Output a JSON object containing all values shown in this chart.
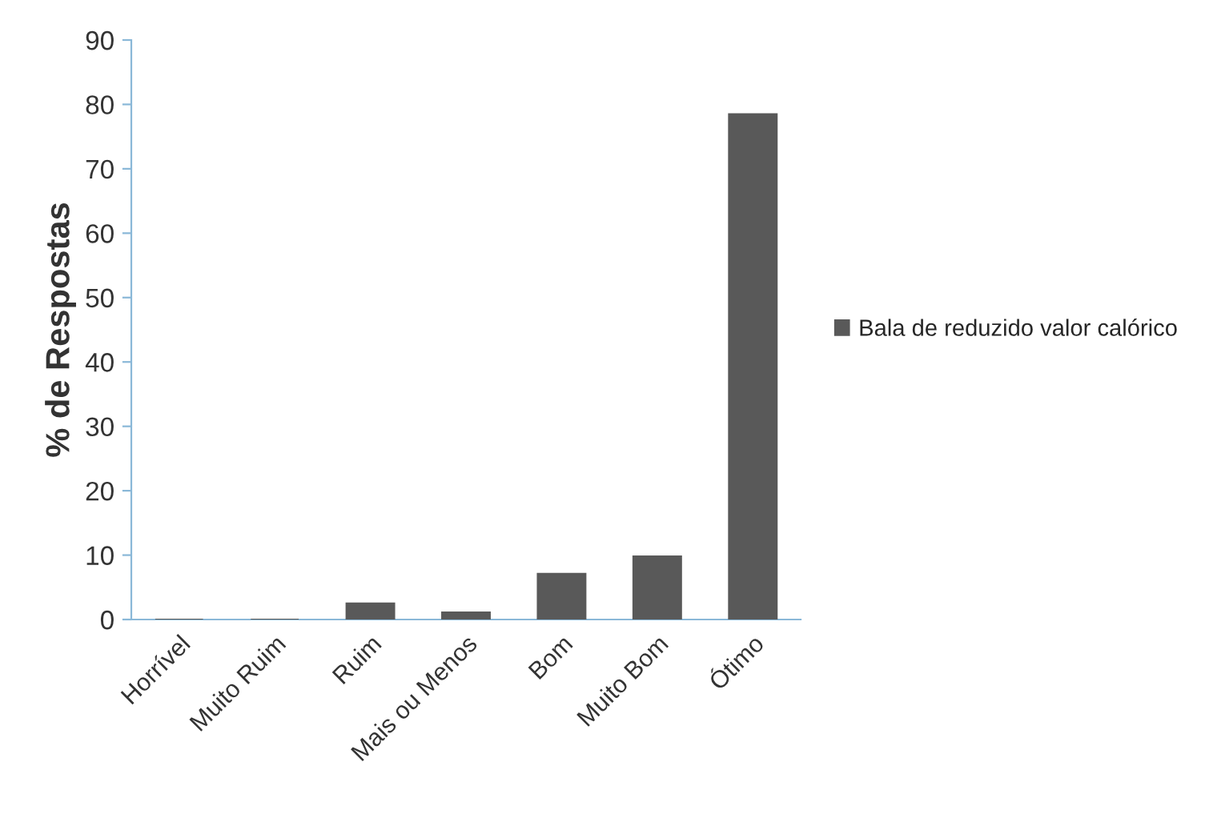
{
  "chart_data": {
    "type": "bar",
    "ylabel": "% de Respostas",
    "categories": [
      "Horrível",
      "Muito Ruim",
      "Ruim",
      "Mais ou Menos",
      "Bom",
      "Muito Bom",
      "Ótimo"
    ],
    "series": [
      {
        "name": "Bala de reduzido valor calórico",
        "color": "#595959",
        "values": [
          0,
          0,
          2.5,
          1.1,
          7.1,
          9.8,
          78.5
        ]
      }
    ],
    "ylim": [
      0,
      90
    ],
    "yticks": [
      0,
      10,
      20,
      30,
      40,
      50,
      60,
      70,
      80,
      90
    ],
    "grid": false,
    "legend": "right"
  }
}
